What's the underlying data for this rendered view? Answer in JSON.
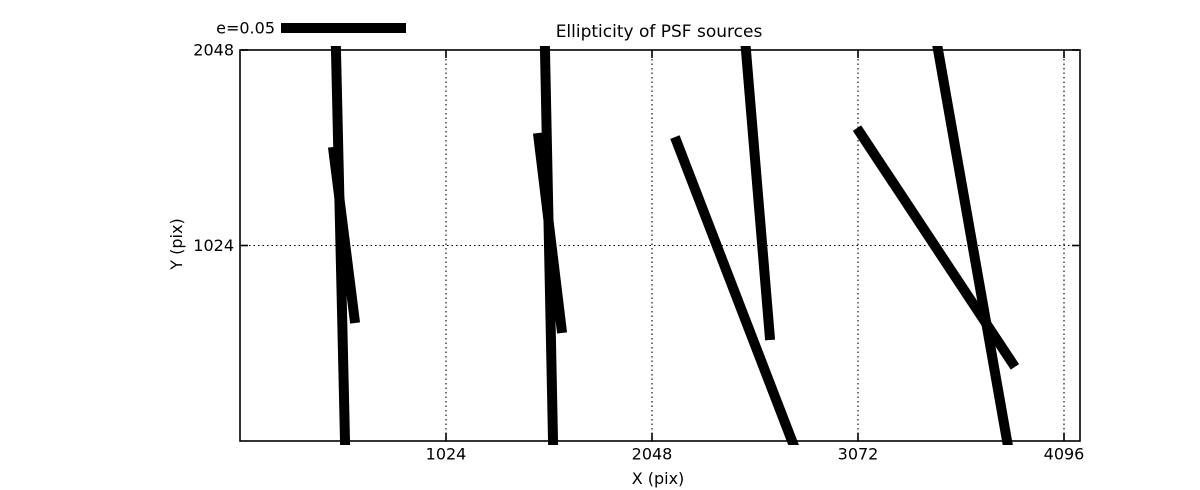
{
  "chart_data": {
    "type": "line",
    "subtype": "psf-ellipticity-whisker-segments",
    "title": "Ellipticity of PSF sources",
    "xlabel": "X (pix)",
    "ylabel": "Y (pix)",
    "xlim": [
      0,
      4176
    ],
    "ylim": [
      0,
      2048
    ],
    "xticks": [
      1024,
      2048,
      3072,
      4096
    ],
    "yticks": [
      1024,
      2048
    ],
    "grid": "dotted",
    "legend": {
      "label": "e=0.05",
      "position": "upper left, above axes"
    },
    "colors": {
      "stroke": "#000000",
      "background": "#ffffff"
    },
    "stroke_width_px": 10,
    "segments": [
      {
        "x1": 477,
        "y1": 2048,
        "x2": 522,
        "y2": 0,
        "clipped_top": true,
        "clipped_bottom": true
      },
      {
        "x1": 462,
        "y1": 1540,
        "x2": 572,
        "y2": 618,
        "clipped_top": false,
        "clipped_bottom": false
      },
      {
        "x1": 1516,
        "y1": 2048,
        "x2": 1556,
        "y2": 0,
        "clipped_top": true,
        "clipped_bottom": true
      },
      {
        "x1": 1481,
        "y1": 1613,
        "x2": 1601,
        "y2": 566,
        "clipped_top": false,
        "clipped_bottom": false
      },
      {
        "x1": 2515,
        "y1": 2048,
        "x2": 2635,
        "y2": 529,
        "clipped_top": true,
        "clipped_bottom": false
      },
      {
        "x1": 2162,
        "y1": 1592,
        "x2": 2744,
        "y2": 0,
        "clipped_top": false,
        "clipped_bottom": true
      },
      {
        "x1": 3067,
        "y1": 1639,
        "x2": 3852,
        "y2": 388,
        "clipped_top": false,
        "clipped_bottom": false
      },
      {
        "x1": 3470,
        "y1": 2048,
        "x2": 3813,
        "y2": 0,
        "clipped_top": true,
        "clipped_bottom": true
      }
    ]
  }
}
